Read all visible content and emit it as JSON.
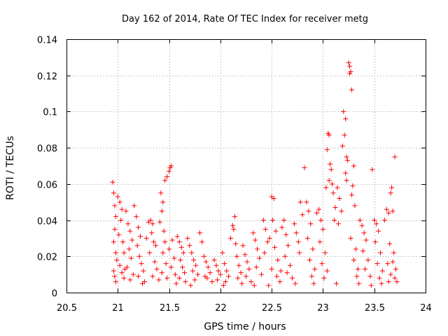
{
  "chart_data": {
    "type": "scatter",
    "title": "Day 162 of 2014, Rate Of TEC Index for receiver metg",
    "xlabel": "GPS time / hours",
    "ylabel": "ROTI / TECUs",
    "xlim": [
      20.5,
      24
    ],
    "ylim": [
      0,
      0.14
    ],
    "x_ticks": [
      "20.5",
      "21",
      "21.5",
      "22",
      "22.5",
      "23",
      "23.5",
      "24"
    ],
    "y_ticks": [
      "0",
      "0.02",
      "0.04",
      "0.06",
      "0.08",
      "0.1",
      "0.12",
      "0.14"
    ],
    "grid": true,
    "marker": "+",
    "color": "#ff0000",
    "series": [
      {
        "name": "ROTI",
        "points": [
          [
            20.95,
            0.061
          ],
          [
            20.96,
            0.055
          ],
          [
            20.97,
            0.048
          ],
          [
            20.98,
            0.042
          ],
          [
            20.97,
            0.035
          ],
          [
            20.96,
            0.028
          ],
          [
            20.98,
            0.022
          ],
          [
            20.99,
            0.018
          ],
          [
            20.96,
            0.012
          ],
          [
            20.97,
            0.009
          ],
          [
            21.0,
            0.053
          ],
          [
            21.02,
            0.05
          ],
          [
            21.04,
            0.046
          ],
          [
            21.03,
            0.04
          ],
          [
            21.01,
            0.032
          ],
          [
            21.05,
            0.028
          ],
          [
            21.06,
            0.022
          ],
          [
            21.02,
            0.015
          ],
          [
            21.04,
            0.011
          ],
          [
            21.06,
            0.008
          ],
          [
            21.08,
            0.045
          ],
          [
            21.1,
            0.038
          ],
          [
            21.12,
            0.034
          ],
          [
            21.14,
            0.029
          ],
          [
            21.11,
            0.024
          ],
          [
            21.13,
            0.019
          ],
          [
            21.09,
            0.014
          ],
          [
            21.15,
            0.01
          ],
          [
            21.12,
            0.007
          ],
          [
            21.16,
            0.048
          ],
          [
            21.18,
            0.042
          ],
          [
            21.2,
            0.036
          ],
          [
            21.22,
            0.031
          ],
          [
            21.19,
            0.026
          ],
          [
            21.21,
            0.02
          ],
          [
            21.23,
            0.016
          ],
          [
            21.25,
            0.012
          ],
          [
            21.2,
            0.009
          ],
          [
            21.26,
            0.006
          ],
          [
            21.28,
            0.03
          ],
          [
            21.3,
            0.039
          ],
          [
            21.32,
            0.04
          ],
          [
            21.34,
            0.038
          ],
          [
            21.33,
            0.033
          ],
          [
            21.35,
            0.028
          ],
          [
            21.31,
            0.022
          ],
          [
            21.36,
            0.017
          ],
          [
            21.38,
            0.013
          ],
          [
            21.34,
            0.009
          ],
          [
            21.4,
            0.007
          ],
          [
            21.42,
            0.055
          ],
          [
            21.44,
            0.05
          ],
          [
            21.43,
            0.045
          ],
          [
            21.41,
            0.039
          ],
          [
            21.45,
            0.034
          ],
          [
            21.46,
            0.028
          ],
          [
            21.44,
            0.022
          ],
          [
            21.47,
            0.016
          ],
          [
            21.43,
            0.011
          ],
          [
            21.48,
            0.008
          ],
          [
            21.46,
            0.062
          ],
          [
            21.48,
            0.064
          ],
          [
            21.5,
            0.067
          ],
          [
            21.52,
            0.07
          ],
          [
            21.51,
            0.069
          ],
          [
            21.53,
            0.029
          ],
          [
            21.5,
            0.024
          ],
          [
            21.55,
            0.019
          ],
          [
            21.52,
            0.014
          ],
          [
            21.56,
            0.01
          ],
          [
            21.58,
            0.031
          ],
          [
            21.6,
            0.028
          ],
          [
            21.62,
            0.025
          ],
          [
            21.64,
            0.022
          ],
          [
            21.61,
            0.018
          ],
          [
            21.63,
            0.014
          ],
          [
            21.65,
            0.011
          ],
          [
            21.6,
            0.008
          ],
          [
            21.66,
            0.006
          ],
          [
            21.68,
            0.03
          ],
          [
            21.7,
            0.026
          ],
          [
            21.72,
            0.022
          ],
          [
            21.74,
            0.018
          ],
          [
            21.76,
            0.015
          ],
          [
            21.73,
            0.012
          ],
          [
            21.78,
            0.01
          ],
          [
            21.75,
            0.007
          ],
          [
            21.8,
            0.033
          ],
          [
            21.82,
            0.028
          ],
          [
            21.84,
            0.02
          ],
          [
            21.86,
            0.017
          ],
          [
            21.88,
            0.014
          ],
          [
            21.9,
            0.011
          ],
          [
            21.87,
            0.008
          ],
          [
            21.92,
            0.006
          ],
          [
            21.94,
            0.018
          ],
          [
            21.96,
            0.015
          ],
          [
            21.98,
            0.012
          ],
          [
            22.0,
            0.01
          ],
          [
            21.97,
            0.007
          ],
          [
            22.02,
            0.022
          ],
          [
            22.04,
            0.016
          ],
          [
            22.06,
            0.012
          ],
          [
            22.08,
            0.009
          ],
          [
            22.05,
            0.006
          ],
          [
            22.1,
            0.03
          ],
          [
            22.12,
            0.037
          ],
          [
            22.14,
            0.042
          ],
          [
            22.13,
            0.035
          ],
          [
            22.15,
            0.027
          ],
          [
            22.16,
            0.02
          ],
          [
            22.18,
            0.015
          ],
          [
            22.2,
            0.011
          ],
          [
            22.17,
            0.008
          ],
          [
            22.22,
            0.026
          ],
          [
            22.24,
            0.021
          ],
          [
            22.26,
            0.017
          ],
          [
            22.28,
            0.013
          ],
          [
            22.25,
            0.009
          ],
          [
            22.3,
            0.006
          ],
          [
            22.32,
            0.033
          ],
          [
            22.34,
            0.029
          ],
          [
            22.36,
            0.024
          ],
          [
            22.38,
            0.019
          ],
          [
            22.35,
            0.014
          ],
          [
            22.4,
            0.01
          ],
          [
            22.42,
            0.04
          ],
          [
            22.44,
            0.035
          ],
          [
            22.46,
            0.028
          ],
          [
            22.43,
            0.022
          ],
          [
            22.48,
            0.03
          ],
          [
            22.5,
            0.053
          ],
          [
            22.52,
            0.052
          ],
          [
            22.51,
            0.04
          ],
          [
            22.54,
            0.034
          ],
          [
            22.53,
            0.025
          ],
          [
            22.56,
            0.018
          ],
          [
            22.5,
            0.013
          ],
          [
            22.55,
            0.009
          ],
          [
            22.58,
            0.006
          ],
          [
            22.6,
            0.036
          ],
          [
            22.62,
            0.04
          ],
          [
            22.64,
            0.032
          ],
          [
            22.66,
            0.026
          ],
          [
            22.63,
            0.02
          ],
          [
            22.68,
            0.015
          ],
          [
            22.65,
            0.011
          ],
          [
            22.7,
            0.008
          ],
          [
            22.72,
            0.038
          ],
          [
            22.74,
            0.033
          ],
          [
            22.76,
            0.028
          ],
          [
            22.78,
            0.05
          ],
          [
            22.8,
            0.043
          ],
          [
            22.77,
            0.022
          ],
          [
            22.82,
            0.069
          ],
          [
            22.84,
            0.05
          ],
          [
            22.86,
            0.045
          ],
          [
            22.88,
            0.038
          ],
          [
            22.85,
            0.03
          ],
          [
            22.9,
            0.024
          ],
          [
            22.87,
            0.018
          ],
          [
            22.92,
            0.013
          ],
          [
            22.89,
            0.009
          ],
          [
            22.94,
            0.044
          ],
          [
            22.96,
            0.046
          ],
          [
            22.98,
            0.04
          ],
          [
            23.0,
            0.035
          ],
          [
            22.97,
            0.028
          ],
          [
            23.02,
            0.022
          ],
          [
            22.99,
            0.016
          ],
          [
            23.04,
            0.012
          ],
          [
            23.01,
            0.008
          ],
          [
            23.03,
            0.058
          ],
          [
            23.05,
            0.088
          ],
          [
            23.06,
            0.087
          ],
          [
            23.04,
            0.079
          ],
          [
            23.07,
            0.071
          ],
          [
            23.08,
            0.068
          ],
          [
            23.06,
            0.062
          ],
          [
            23.09,
            0.06
          ],
          [
            23.1,
            0.055
          ],
          [
            23.12,
            0.047
          ],
          [
            23.11,
            0.04
          ],
          [
            23.14,
            0.058
          ],
          [
            23.16,
            0.052
          ],
          [
            23.18,
            0.045
          ],
          [
            23.15,
            0.038
          ],
          [
            23.2,
            0.1
          ],
          [
            23.22,
            0.096
          ],
          [
            23.21,
            0.087
          ],
          [
            23.19,
            0.081
          ],
          [
            23.23,
            0.075
          ],
          [
            23.24,
            0.073
          ],
          [
            23.22,
            0.066
          ],
          [
            23.25,
            0.127
          ],
          [
            23.26,
            0.125
          ],
          [
            23.27,
            0.122
          ],
          [
            23.26,
            0.121
          ],
          [
            23.28,
            0.112
          ],
          [
            23.23,
            0.062
          ],
          [
            23.29,
            0.059
          ],
          [
            23.3,
            0.07
          ],
          [
            23.28,
            0.054
          ],
          [
            23.31,
            0.048
          ],
          [
            23.27,
            0.03
          ],
          [
            23.32,
            0.024
          ],
          [
            23.3,
            0.018
          ],
          [
            23.34,
            0.013
          ],
          [
            23.33,
            0.009
          ],
          [
            23.36,
            0.04
          ],
          [
            23.38,
            0.037
          ],
          [
            23.4,
            0.033
          ],
          [
            23.42,
            0.029
          ],
          [
            23.39,
            0.023
          ],
          [
            23.44,
            0.018
          ],
          [
            23.41,
            0.013
          ],
          [
            23.46,
            0.009
          ],
          [
            23.48,
            0.068
          ],
          [
            23.5,
            0.04
          ],
          [
            23.52,
            0.038
          ],
          [
            23.54,
            0.034
          ],
          [
            23.51,
            0.028
          ],
          [
            23.56,
            0.022
          ],
          [
            23.53,
            0.016
          ],
          [
            23.58,
            0.012
          ],
          [
            23.55,
            0.008
          ],
          [
            23.6,
            0.04
          ],
          [
            23.62,
            0.046
          ],
          [
            23.64,
            0.044
          ],
          [
            23.66,
            0.055
          ],
          [
            23.67,
            0.058
          ],
          [
            23.68,
            0.045
          ],
          [
            23.65,
            0.027
          ],
          [
            23.69,
            0.022
          ],
          [
            23.7,
            0.075
          ],
          [
            23.68,
            0.017
          ],
          [
            23.71,
            0.013
          ],
          [
            23.66,
            0.01
          ],
          [
            23.7,
            0.008
          ],
          [
            23.64,
            0.006
          ],
          [
            20.98,
            0.006
          ],
          [
            21.07,
            0.013
          ],
          [
            21.24,
            0.005
          ],
          [
            21.37,
            0.026
          ],
          [
            21.57,
            0.005
          ],
          [
            21.71,
            0.004
          ],
          [
            21.85,
            0.009
          ],
          [
            22.03,
            0.004
          ],
          [
            22.21,
            0.005
          ],
          [
            22.33,
            0.004
          ],
          [
            22.47,
            0.004
          ],
          [
            22.59,
            0.012
          ],
          [
            22.73,
            0.005
          ],
          [
            22.91,
            0.005
          ],
          [
            23.13,
            0.005
          ],
          [
            23.35,
            0.005
          ],
          [
            23.47,
            0.004
          ],
          [
            23.57,
            0.005
          ],
          [
            23.63,
            0.016
          ],
          [
            23.72,
            0.006
          ]
        ]
      }
    ]
  }
}
